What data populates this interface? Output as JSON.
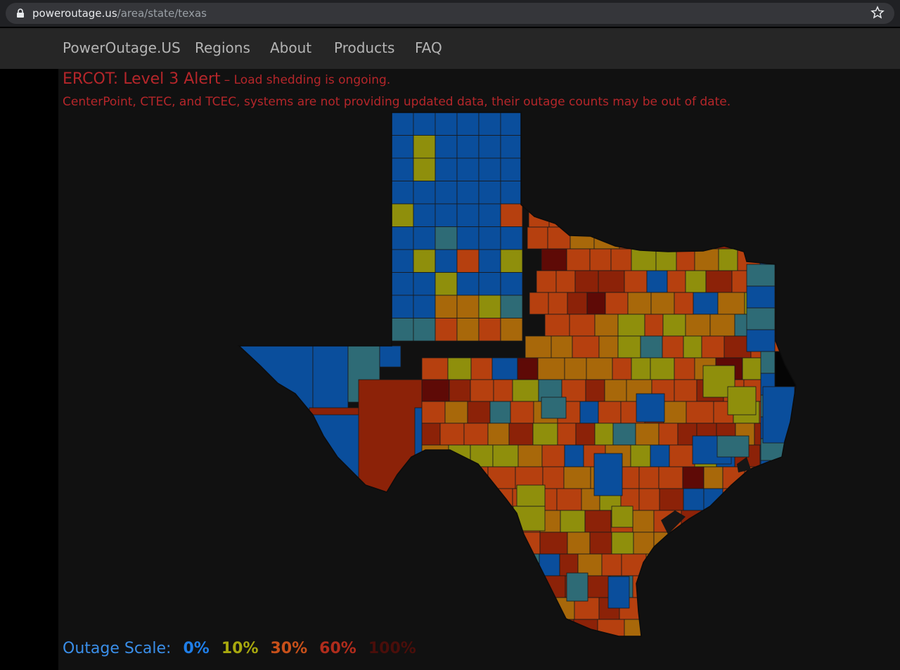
{
  "browser": {
    "url_host": "poweroutage.us",
    "url_path": "/area/state/texas"
  },
  "nav": {
    "brand": "PowerOutage.US",
    "items": [
      "Regions",
      "About",
      "Products",
      "FAQ"
    ]
  },
  "alert": {
    "title": "ERCOT: Level 3 Alert",
    "detail": "– Load shedding is ongoing.",
    "notice": "CenterPoint, CTEC, and TCEC, systems are not providing updated data, their outage counts may be out of date."
  },
  "map": {
    "region": "Texas",
    "level_colors": {
      "0": "#0a4e9c",
      "10": "#8f8f0c",
      "20": "#a8680a",
      "30": "#b6400f",
      "60": "#8c2208",
      "100": "#5e0a06",
      "nodata": "#2e6b76"
    }
  },
  "legend": {
    "label": "Outage Scale:",
    "levels": [
      {
        "text": "0%",
        "color": "#1f7ee8"
      },
      {
        "text": "10%",
        "color": "#a8a80e"
      },
      {
        "text": "30%",
        "color": "#c8501a"
      },
      {
        "text": "60%",
        "color": "#b02c1c"
      },
      {
        "text": "100%",
        "color": "#4a0e0a"
      }
    ]
  }
}
